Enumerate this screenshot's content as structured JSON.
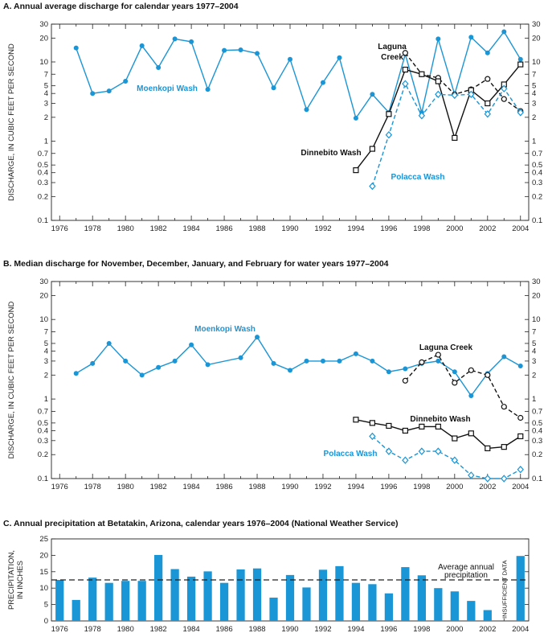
{
  "chart_data": [
    {
      "type": "line",
      "title": "A.  Annual average discharge for calendar years 1977–2004",
      "ylabel": "DISCHARGE, IN CUBIC FEET PER SECOND",
      "xlabel": "",
      "yscale": "log",
      "ylim": [
        0.1,
        30
      ],
      "xlim": [
        1975.5,
        2004.5
      ],
      "xticks": [
        "1976",
        "1978",
        "1980",
        "1982",
        "1984",
        "1986",
        "1988",
        "1990",
        "1992",
        "1994",
        "1996",
        "1998",
        "2000",
        "2002",
        "2004"
      ],
      "yticks": [
        "0.1",
        "0.2",
        "0.3",
        "0.4",
        "0.5",
        "0.7",
        "1",
        "2",
        "3",
        "4",
        "5",
        "7",
        "10",
        "20",
        "30"
      ],
      "right_axis_mirror": true,
      "grid": false,
      "series": [
        {
          "name": "Moenkopi Wash",
          "color": "#1a95d5",
          "dash": "solid",
          "marker": "dot",
          "x": [
            1977,
            1978,
            1979,
            1980,
            1981,
            1982,
            1983,
            1984,
            1985,
            1986,
            1987,
            1988,
            1989,
            1990,
            1991,
            1992,
            1993,
            1994,
            1995,
            1996,
            1997,
            1998,
            1999,
            2000,
            2001,
            2002,
            2003,
            2004
          ],
          "values": [
            15,
            4,
            4.3,
            5.7,
            16,
            8.5,
            19.5,
            18,
            4.5,
            14,
            14.2,
            12.8,
            4.7,
            10.8,
            2.5,
            5.5,
            11.3,
            1.95,
            3.9,
            2.3,
            12.5,
            2.3,
            19.5,
            3.9,
            20.5,
            13,
            24,
            10.8
          ]
        },
        {
          "name": "Laguna Creek",
          "color": "#111111",
          "dash": "dashed",
          "marker": "circle",
          "x": [
            1997,
            1998,
            1999,
            2000,
            2001,
            2002,
            2003,
            2004
          ],
          "values": [
            13,
            7,
            6.3,
            3.9,
            4.5,
            6.1,
            3.4,
            2.4
          ]
        },
        {
          "name": "Dinnebito Wash",
          "color": "#111111",
          "dash": "solid",
          "marker": "square",
          "x": [
            1994,
            1995,
            1996,
            1997,
            1998,
            1999,
            2000,
            2001,
            2002,
            2003,
            2004
          ],
          "values": [
            0.43,
            0.8,
            2.2,
            8,
            7,
            5.7,
            1.1,
            4.4,
            3,
            5.2,
            9.3
          ]
        },
        {
          "name": "Polacca Wash",
          "color": "#1a95d5",
          "dash": "dashed",
          "marker": "diamond",
          "x": [
            1995,
            1996,
            1997,
            1998,
            1999,
            2000,
            2001,
            2002,
            2003,
            2004
          ],
          "values": [
            0.27,
            1.2,
            5.3,
            2.1,
            3.9,
            3.8,
            3.9,
            2.2,
            4.6,
            2.3
          ]
        }
      ],
      "annotations": [
        "Moenkopi Wash",
        "Laguna Creek",
        "Dinnebito Wash",
        "Polacca Wash"
      ]
    },
    {
      "type": "line",
      "title": "B.  Median discharge for November, December, January, and February for water years 1977–2004",
      "ylabel": "DISCHARGE, IN CUBIC FEET PER SECOND",
      "xlabel": "",
      "yscale": "log",
      "ylim": [
        0.1,
        30
      ],
      "xlim": [
        1975.5,
        2004.5
      ],
      "xticks": [
        "1976",
        "1978",
        "1980",
        "1982",
        "1984",
        "1986",
        "1988",
        "1990",
        "1992",
        "1994",
        "1996",
        "1998",
        "2000",
        "2002",
        "2004"
      ],
      "yticks": [
        "0.1",
        "0.2",
        "0.3",
        "0.4",
        "0.5",
        "0.7",
        "1",
        "2",
        "3",
        "4",
        "5",
        "7",
        "10",
        "20",
        "30"
      ],
      "right_axis_mirror": true,
      "grid": false,
      "series": [
        {
          "name": "Moenkopi Wash",
          "color": "#1a95d5",
          "dash": "solid",
          "marker": "dot",
          "x": [
            1977,
            1978,
            1979,
            1980,
            1981,
            1982,
            1983,
            1984,
            1985,
            1987,
            1988,
            1989,
            1990,
            1991,
            1992,
            1993,
            1994,
            1995,
            1996,
            1997,
            1998,
            1999,
            2000,
            2001,
            2002,
            2003,
            2004
          ],
          "values": [
            2.1,
            2.8,
            5,
            3,
            2,
            2.5,
            3,
            4.8,
            2.7,
            3.3,
            6,
            2.8,
            2.3,
            3,
            3,
            3,
            3.7,
            3,
            2.2,
            2.4,
            2.8,
            3,
            2.2,
            1.1,
            2.1,
            3.4,
            2.6
          ]
        },
        {
          "name": "Laguna Creek",
          "color": "#111111",
          "dash": "dashed",
          "marker": "circle",
          "x": [
            1997,
            1998,
            1999,
            2000,
            2001,
            2002,
            2003,
            2004
          ],
          "values": [
            1.7,
            2.9,
            3.6,
            1.6,
            2.3,
            2,
            0.8,
            0.58
          ]
        },
        {
          "name": "Dinnebito Wash",
          "color": "#111111",
          "dash": "solid",
          "marker": "square",
          "x": [
            1994,
            1995,
            1996,
            1997,
            1998,
            1999,
            2000,
            2001,
            2002,
            2003,
            2004
          ],
          "values": [
            0.55,
            0.5,
            0.46,
            0.4,
            0.45,
            0.45,
            0.32,
            0.37,
            0.24,
            0.25,
            0.34
          ]
        },
        {
          "name": "Polacca Wash",
          "color": "#1a95d5",
          "dash": "dashed",
          "marker": "diamond",
          "x": [
            1995,
            1996,
            1997,
            1998,
            1999,
            2000,
            2001,
            2002,
            2003,
            2004
          ],
          "values": [
            0.34,
            0.22,
            0.17,
            0.22,
            0.22,
            0.17,
            0.11,
            0.1,
            0.1,
            0.13
          ]
        }
      ],
      "annotations": [
        "Moenkopi Wash",
        "Laguna Creek",
        "Dinnebito Wash",
        "Polacca Wash"
      ]
    },
    {
      "type": "bar",
      "title": "C.  Annual precipitation at Betatakin, Arizona, calendar years 1976–2004 (National Weather Service)",
      "ylabel": "PRECIPITATION, IN INCHES",
      "xlabel": "",
      "ylim": [
        0,
        25
      ],
      "xlim": [
        1975.5,
        2004.5
      ],
      "xticks": [
        "1976",
        "1978",
        "1980",
        "1982",
        "1984",
        "1986",
        "1988",
        "1990",
        "1992",
        "1994",
        "1996",
        "1998",
        "2000",
        "2002",
        "2004"
      ],
      "yticks": [
        "0",
        "5",
        "10",
        "15",
        "20",
        "25"
      ],
      "grid": false,
      "bar_color": "#1a95d5",
      "x": [
        1976,
        1977,
        1978,
        1979,
        1980,
        1981,
        1982,
        1983,
        1984,
        1985,
        1986,
        1987,
        1988,
        1989,
        1990,
        1991,
        1992,
        1993,
        1994,
        1995,
        1996,
        1997,
        1998,
        1999,
        2000,
        2001,
        2002,
        2004
      ],
      "values": [
        12.5,
        6.4,
        13.2,
        11.6,
        12.2,
        12.2,
        20.1,
        15.8,
        13.5,
        15.1,
        11.6,
        15.7,
        16,
        7.1,
        14,
        10.2,
        15.6,
        16.7,
        11.6,
        11.2,
        8.4,
        16.4,
        13.9,
        10,
        9,
        6.1,
        3.3,
        19.8
      ],
      "reference_line": {
        "value": 12.5,
        "label_line1": "Average annual",
        "label_line2": "precipitation",
        "dash": "dashed"
      },
      "missing_note": {
        "year": 2003,
        "text": "INSUFFICIENT DATA"
      }
    }
  ]
}
